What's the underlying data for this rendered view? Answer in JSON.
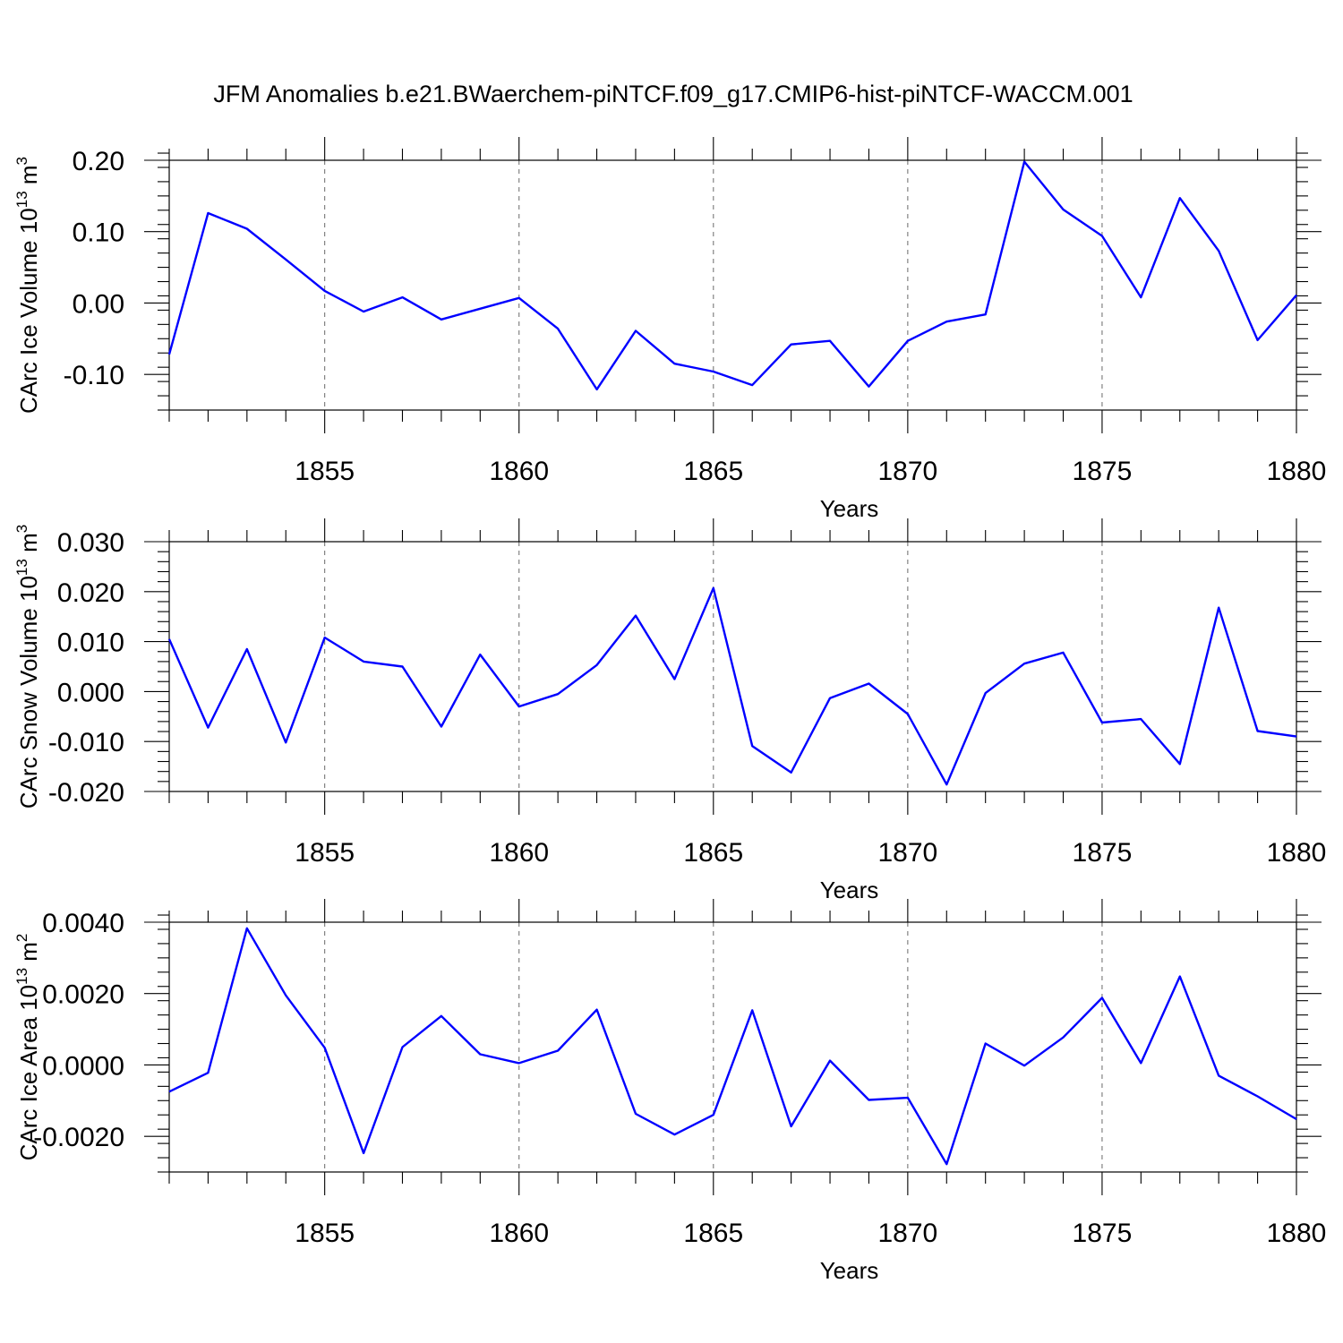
{
  "figure_title": "JFM Anomalies b.e21.BWaerchem-piNTCF.f09_g17.CMIP6-hist-piNTCF-WACCM.001",
  "chart_data": [
    {
      "type": "line",
      "title": "JFM Anomalies b.e21.BWaerchem-piNTCF.f09_g17.CMIP6-hist-piNTCF-WACCM.001",
      "xlabel": "Years",
      "ylabel": "CArc Ice Volume 10",
      "ylabel_sup1": "13",
      "ylabel_unit": " m",
      "ylabel_sup2": "3",
      "xlim": [
        1851,
        1880
      ],
      "ylim": [
        -0.15,
        0.2
      ],
      "x_ticks": [
        1855,
        1860,
        1865,
        1870,
        1875,
        1880
      ],
      "x_tick_labels": [
        "1855",
        "1860",
        "1865",
        "1870",
        "1875",
        "1880"
      ],
      "y_ticks": [
        -0.1,
        0.0,
        0.1,
        0.2
      ],
      "y_tick_labels": [
        "-0.10",
        "0.00",
        "0.10",
        "0.20"
      ],
      "y_minor_step": 0.02,
      "grid": "vertical dashed at major x ticks",
      "x": [
        1851,
        1852,
        1853,
        1854,
        1855,
        1856,
        1857,
        1858,
        1859,
        1860,
        1861,
        1862,
        1863,
        1864,
        1865,
        1866,
        1867,
        1868,
        1869,
        1870,
        1871,
        1872,
        1873,
        1874,
        1875,
        1876,
        1877,
        1878,
        1879,
        1880
      ],
      "values": [
        -0.072,
        0.126,
        0.104,
        0.061,
        0.017,
        -0.012,
        0.008,
        -0.023,
        -0.008,
        0.007,
        -0.036,
        -0.121,
        -0.039,
        -0.085,
        -0.096,
        -0.115,
        -0.058,
        -0.053,
        -0.117,
        -0.053,
        -0.026,
        -0.016,
        0.198,
        0.131,
        0.094,
        0.008,
        0.147,
        0.073,
        -0.052,
        0.011
      ]
    },
    {
      "type": "line",
      "xlabel": "Years",
      "ylabel": "CArc Snow Volume 10",
      "ylabel_sup1": "13",
      "ylabel_unit": " m",
      "ylabel_sup2": "3",
      "xlim": [
        1851,
        1880
      ],
      "ylim": [
        -0.02,
        0.03
      ],
      "x_ticks": [
        1855,
        1860,
        1865,
        1870,
        1875,
        1880
      ],
      "x_tick_labels": [
        "1855",
        "1860",
        "1865",
        "1870",
        "1875",
        "1880"
      ],
      "y_ticks": [
        -0.02,
        -0.01,
        0.0,
        0.01,
        0.02,
        0.03
      ],
      "y_tick_labels": [
        "-0.020",
        "-0.010",
        "0.000",
        "0.010",
        "0.020",
        "0.030"
      ],
      "y_minor_step": 0.002,
      "grid": "vertical dashed at major x ticks",
      "x": [
        1851,
        1852,
        1853,
        1854,
        1855,
        1856,
        1857,
        1858,
        1859,
        1860,
        1861,
        1862,
        1863,
        1864,
        1865,
        1866,
        1867,
        1868,
        1869,
        1870,
        1871,
        1872,
        1873,
        1874,
        1875,
        1876,
        1877,
        1878,
        1879,
        1880
      ],
      "values": [
        0.0105,
        -0.0072,
        0.0085,
        -0.0102,
        0.0108,
        0.006,
        0.005,
        -0.007,
        0.0074,
        -0.003,
        -0.0005,
        0.0053,
        0.0152,
        0.0025,
        0.0207,
        -0.0109,
        -0.0162,
        -0.0013,
        0.0016,
        -0.0045,
        -0.0186,
        -0.0003,
        0.0056,
        0.0078,
        -0.0062,
        -0.0055,
        -0.0145,
        0.0168,
        -0.0079,
        -0.009
      ]
    },
    {
      "type": "line",
      "xlabel": "Years",
      "ylabel": "CArc Ice Area 10",
      "ylabel_sup1": "13",
      "ylabel_unit": " m",
      "ylabel_sup2": "2",
      "xlim": [
        1851,
        1880
      ],
      "ylim": [
        -0.003,
        0.004
      ],
      "x_ticks": [
        1855,
        1860,
        1865,
        1870,
        1875,
        1880
      ],
      "x_tick_labels": [
        "1855",
        "1860",
        "1865",
        "1870",
        "1875",
        "1880"
      ],
      "y_ticks": [
        -0.002,
        0.0,
        0.002,
        0.004
      ],
      "y_tick_labels": [
        "-0.0020",
        "0.0000",
        "0.0020",
        "0.0040"
      ],
      "y_minor_step": 0.0004,
      "grid": "vertical dashed at major x ticks",
      "x": [
        1851,
        1852,
        1853,
        1854,
        1855,
        1856,
        1857,
        1858,
        1859,
        1860,
        1861,
        1862,
        1863,
        1864,
        1865,
        1866,
        1867,
        1868,
        1869,
        1870,
        1871,
        1872,
        1873,
        1874,
        1875,
        1876,
        1877,
        1878,
        1879,
        1880
      ],
      "values": [
        -0.00075,
        -0.00022,
        0.00383,
        0.00195,
        0.00048,
        -0.00247,
        0.0005,
        0.00137,
        0.0003,
        5e-05,
        0.0004,
        0.00155,
        -0.00137,
        -0.00195,
        -0.0014,
        0.00153,
        -0.00172,
        0.00012,
        -0.00098,
        -0.00092,
        -0.00278,
        0.0006,
        -2e-05,
        0.00077,
        0.00188,
        5e-05,
        0.00248,
        -0.0003,
        -0.00088,
        -0.00152
      ]
    }
  ]
}
